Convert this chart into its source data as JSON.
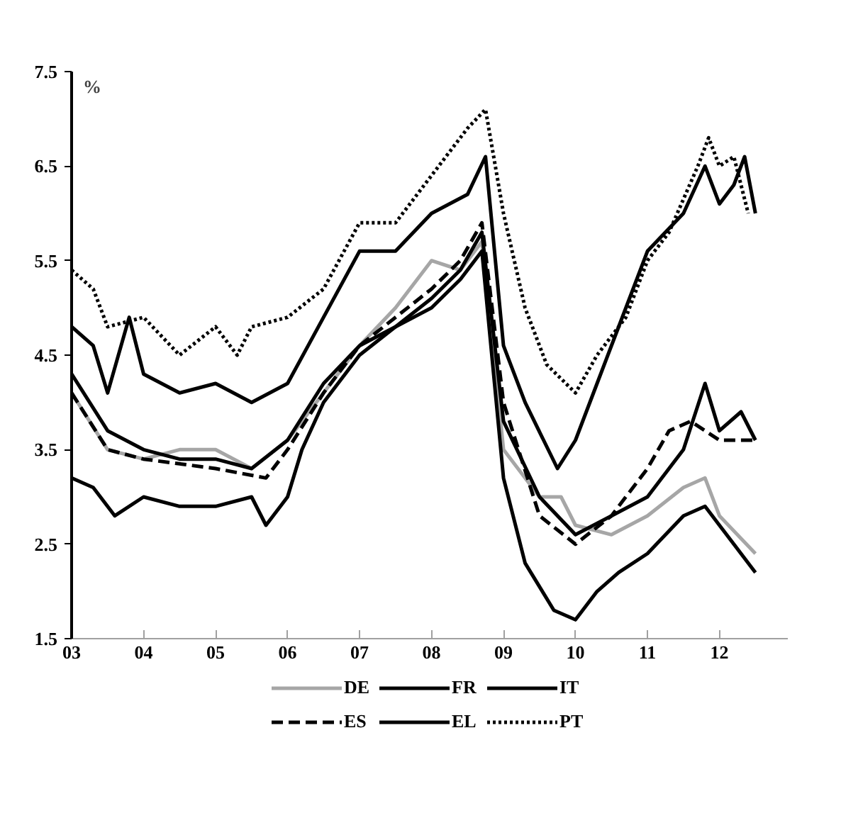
{
  "chart_data": {
    "type": "line",
    "ylabel": "%",
    "xlim": [
      3,
      12.95
    ],
    "ylim": [
      1.5,
      7.5
    ],
    "xticks": [
      {
        "value": 3,
        "label": "03"
      },
      {
        "value": 4,
        "label": "04"
      },
      {
        "value": 5,
        "label": "05"
      },
      {
        "value": 6,
        "label": "06"
      },
      {
        "value": 7,
        "label": "07"
      },
      {
        "value": 8,
        "label": "08"
      },
      {
        "value": 9,
        "label": "09"
      },
      {
        "value": 10,
        "label": "10"
      },
      {
        "value": 11,
        "label": "11"
      },
      {
        "value": 12,
        "label": "12"
      }
    ],
    "yticks": [
      1.5,
      2.5,
      3.5,
      4.5,
      5.5,
      6.5,
      7.5
    ],
    "grid": false,
    "legend": "bottom",
    "series": [
      {
        "name": "DE",
        "color": "#a6a6a6",
        "line_style": "solid",
        "x": [
          3,
          3.5,
          4,
          4.5,
          5,
          5.5,
          6,
          6.5,
          7,
          7.5,
          8,
          8.4,
          8.7,
          9,
          9.5,
          9.8,
          10,
          10.5,
          11,
          11.5,
          11.8,
          12,
          12.5
        ],
        "values": [
          4.1,
          3.5,
          3.4,
          3.5,
          3.5,
          3.3,
          3.6,
          4.1,
          4.6,
          5.0,
          5.5,
          5.4,
          5.7,
          3.5,
          3.0,
          3.0,
          2.7,
          2.6,
          2.8,
          3.1,
          3.2,
          2.8,
          2.4
        ]
      },
      {
        "name": "FR",
        "color": "#000000",
        "line_style": "solid",
        "x": [
          3,
          3.3,
          3.6,
          4,
          4.5,
          5,
          5.5,
          5.7,
          6,
          6.2,
          6.5,
          7,
          7.5,
          8,
          8.4,
          8.7,
          9,
          9.3,
          9.7,
          10,
          10.3,
          10.6,
          11,
          11.5,
          11.8,
          12,
          12.5
        ],
        "values": [
          3.2,
          3.1,
          2.8,
          3.0,
          2.9,
          2.9,
          3.0,
          2.7,
          3.0,
          3.5,
          4.0,
          4.5,
          4.8,
          5.0,
          5.3,
          5.6,
          3.2,
          2.3,
          1.8,
          1.7,
          2.0,
          2.2,
          2.4,
          2.8,
          2.9,
          2.7,
          2.2
        ]
      },
      {
        "name": "IT",
        "color": "#000000",
        "line_style": "solid",
        "x": [
          3,
          3.5,
          4,
          4.5,
          5,
          5.5,
          6,
          6.5,
          7,
          7.5,
          8,
          8.4,
          8.7,
          9,
          9.5,
          10,
          10.5,
          11,
          11.5,
          11.8,
          12,
          12.3,
          12.5
        ],
        "values": [
          4.3,
          3.7,
          3.5,
          3.4,
          3.4,
          3.3,
          3.6,
          4.2,
          4.6,
          4.8,
          5.1,
          5.4,
          5.8,
          3.8,
          3.0,
          2.6,
          2.8,
          3.0,
          3.5,
          4.2,
          3.7,
          3.9,
          3.6
        ]
      },
      {
        "name": "ES",
        "color": "#000000",
        "line_style": "dashed",
        "x": [
          3,
          3.5,
          4,
          4.5,
          5,
          5.7,
          6,
          6.5,
          7,
          7.5,
          8,
          8.4,
          8.7,
          9,
          9.5,
          10,
          10.5,
          11,
          11.3,
          11.6,
          12,
          12.5
        ],
        "values": [
          4.1,
          3.5,
          3.4,
          3.35,
          3.3,
          3.2,
          3.5,
          4.1,
          4.6,
          4.9,
          5.2,
          5.5,
          5.9,
          4.0,
          2.8,
          2.5,
          2.8,
          3.3,
          3.7,
          3.8,
          3.6,
          3.6
        ]
      },
      {
        "name": "EL",
        "color": "#000000",
        "line_style": "solid",
        "x": [
          3,
          3.3,
          3.5,
          3.8,
          4,
          4.5,
          5,
          5.5,
          6,
          6.5,
          7,
          7.5,
          8,
          8.5,
          8.75,
          9,
          9.3,
          9.75,
          10,
          10.3,
          10.6,
          11,
          11.5,
          11.8,
          12,
          12.2,
          12.35,
          12.5
        ],
        "values": [
          4.8,
          4.6,
          4.1,
          4.9,
          4.3,
          4.1,
          4.2,
          4.0,
          4.2,
          4.9,
          5.6,
          5.6,
          6.0,
          6.2,
          6.6,
          4.6,
          4.0,
          3.3,
          3.6,
          4.2,
          4.8,
          5.6,
          6.0,
          6.5,
          6.1,
          6.3,
          6.6,
          6.0
        ]
      },
      {
        "name": "PT",
        "color": "#000000",
        "line_style": "dotted",
        "x": [
          3,
          3.3,
          3.5,
          4,
          4.5,
          5,
          5.3,
          5.5,
          6,
          6.5,
          7,
          7.5,
          8,
          8.5,
          8.75,
          9,
          9.3,
          9.6,
          10,
          10.3,
          10.7,
          11,
          11.3,
          11.7,
          11.85,
          12,
          12.2,
          12.4
        ],
        "values": [
          5.4,
          5.2,
          4.8,
          4.9,
          4.5,
          4.8,
          4.5,
          4.8,
          4.9,
          5.2,
          5.9,
          5.9,
          6.4,
          6.9,
          7.1,
          6.0,
          5.0,
          4.4,
          4.1,
          4.5,
          4.9,
          5.5,
          5.8,
          6.5,
          6.8,
          6.5,
          6.6,
          6.0
        ]
      }
    ]
  }
}
